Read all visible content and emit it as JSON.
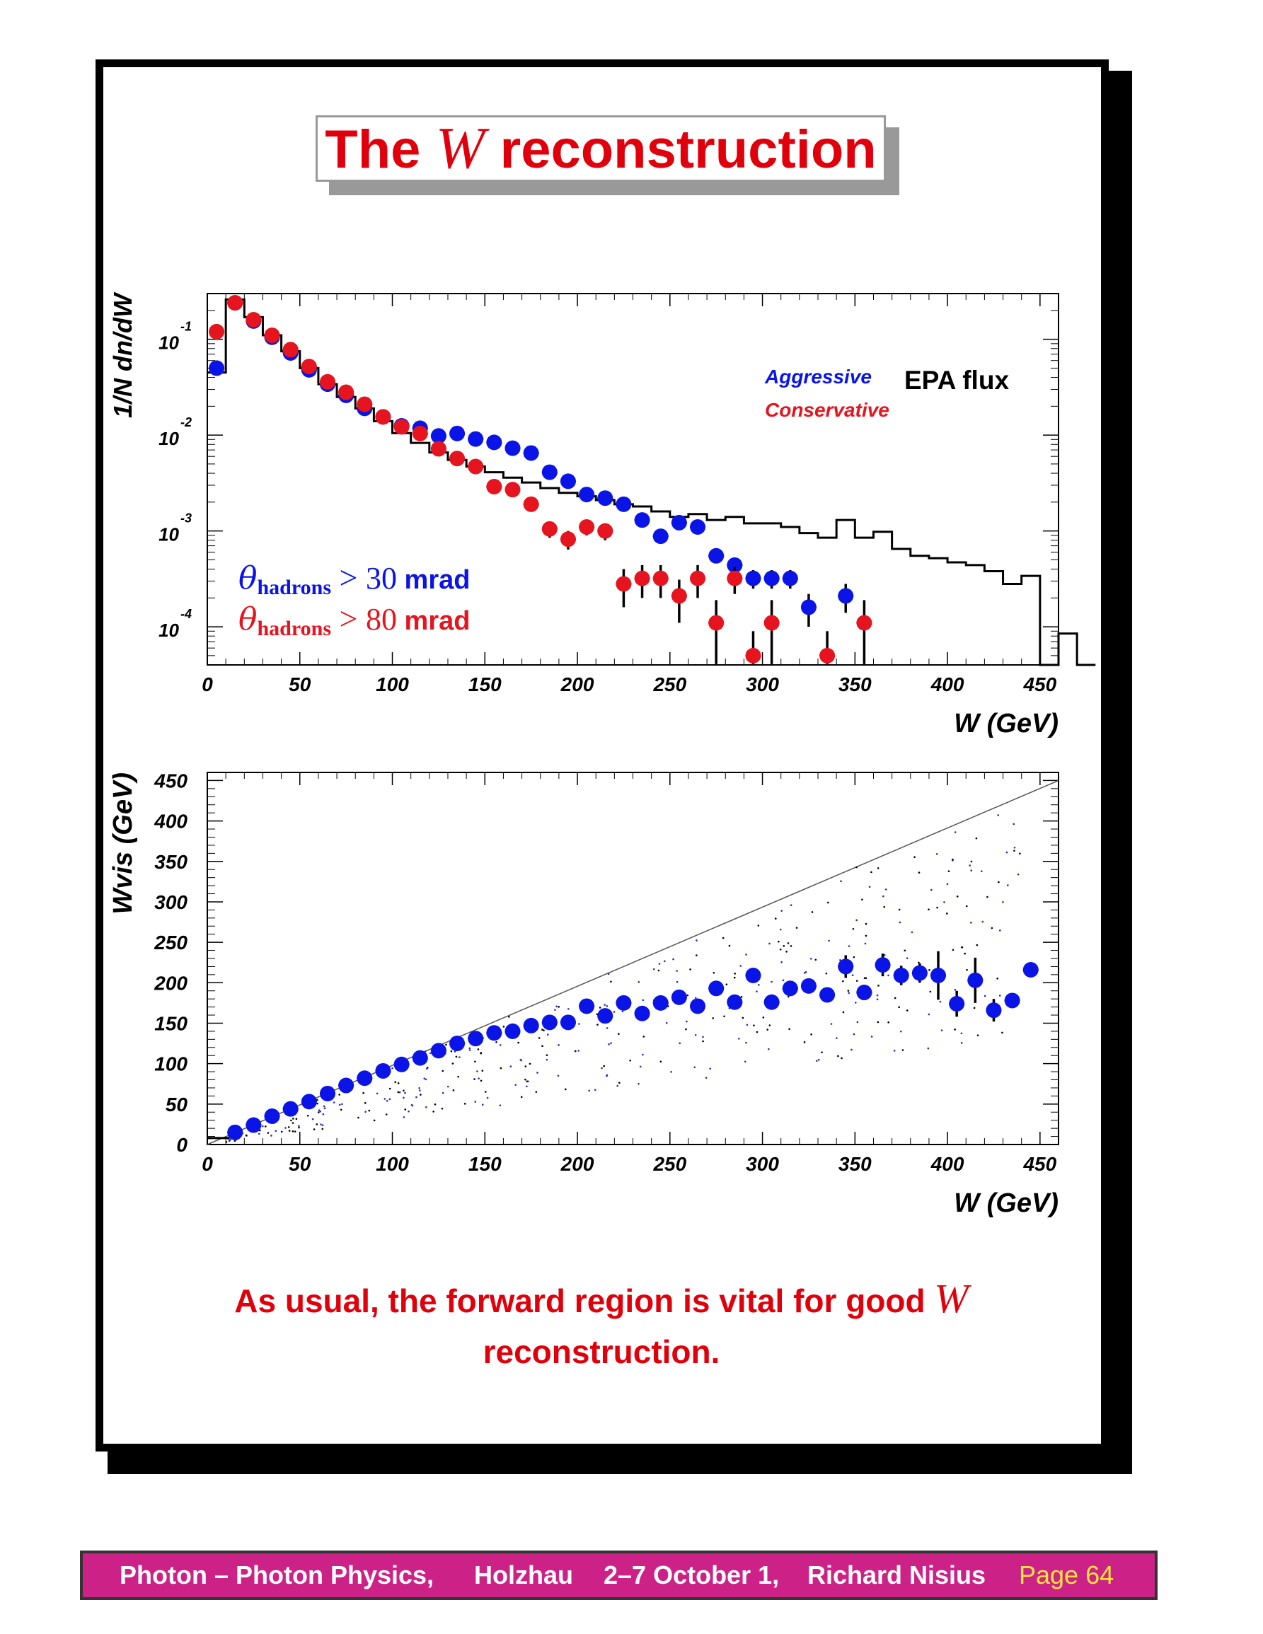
{
  "slide": {
    "title_pre": "The",
    "title_var": "W",
    "title_post": "reconstruction",
    "conclusion_line1": "As usual, the forward region is vital for good",
    "conclusion_var": "W",
    "conclusion_line2": "reconstruction."
  },
  "footer": {
    "talk": "Photon – Photon Physics,",
    "venue": "Holzhau",
    "dates": "2–7 October 1,",
    "author": "Richard Nisius",
    "page": "Page 64"
  },
  "colors": {
    "blue": "#0a14e6",
    "red": "#e5141e",
    "black": "#000000",
    "accent_red": "#e0000b",
    "footer_bg": "#cc2287",
    "page_label": "#ffe63a"
  },
  "chart_data": [
    {
      "type": "scatter",
      "log_y": true,
      "ylabel": "1/N dn/dW",
      "xlabel": "W (GeV)",
      "xlim": [
        0,
        460
      ],
      "ylim": [
        4e-05,
        0.3
      ],
      "x_ticks": [
        "0",
        "50",
        "100",
        "150",
        "200",
        "250",
        "300",
        "350",
        "400",
        "450"
      ],
      "y_ticks": [
        {
          "value": 0.1,
          "base": "10",
          "exp": "-1"
        },
        {
          "value": 0.01,
          "base": "10",
          "exp": "-2"
        },
        {
          "value": 0.001,
          "base": "10",
          "exp": "-3"
        },
        {
          "value": 0.0001,
          "base": "10",
          "exp": "-4"
        }
      ],
      "legend": [
        {
          "name": "Aggressive",
          "color": "#0a14e6"
        },
        {
          "name": "Conservative",
          "color": "#e5141e"
        },
        {
          "name": "EPA flux",
          "color": "#000000"
        }
      ],
      "annotations": [
        {
          "theta": "θ",
          "sub": "hadrons",
          "rel": ">",
          "value": "30",
          "unit": "mrad",
          "color": "#0a14e6"
        },
        {
          "theta": "θ",
          "sub": "hadrons",
          "rel": ">",
          "value": "80",
          "unit": "mrad",
          "color": "#e5141e"
        }
      ],
      "series": [
        {
          "name": "EPA flux",
          "style": "histogram",
          "bin_width": 10,
          "bin_edges_start": 0,
          "values": [
            0.045,
            0.26,
            0.17,
            0.11,
            0.075,
            0.05,
            0.034,
            0.025,
            0.019,
            0.014,
            0.0105,
            0.0083,
            0.0066,
            0.0055,
            0.0047,
            0.0041,
            0.0036,
            0.0032,
            0.0028,
            0.0025,
            0.0023,
            0.0021,
            0.0019,
            0.0018,
            0.0016,
            0.0014,
            0.0015,
            0.0013,
            0.0014,
            0.0012,
            0.0012,
            0.0011,
            0.00095,
            0.00085,
            0.0013,
            0.00085,
            0.00098,
            0.00065,
            0.00055,
            0.00052,
            0.00047,
            0.00044,
            0.00038,
            0.00028,
            0.00034,
            4e-05,
            8.5e-05,
            3e-05
          ]
        },
        {
          "name": "Aggressive",
          "style": "markers",
          "x": [
            5,
            15,
            25,
            35,
            45,
            55,
            65,
            75,
            85,
            95,
            105,
            115,
            125,
            135,
            145,
            155,
            165,
            175,
            185,
            195,
            205,
            215,
            225,
            235,
            245,
            255,
            265,
            275,
            285,
            295,
            305,
            315,
            325,
            345
          ],
          "y": [
            0.05,
            0.24,
            0.155,
            0.105,
            0.072,
            0.048,
            0.034,
            0.026,
            0.019,
            0.0155,
            0.0125,
            0.0118,
            0.0098,
            0.0104,
            0.0091,
            0.0084,
            0.0073,
            0.0065,
            0.0041,
            0.0033,
            0.0024,
            0.0022,
            0.0019,
            0.0013,
            0.00088,
            0.00122,
            0.0011,
            0.00055,
            0.00044,
            0.00032,
            0.00032,
            0.00032,
            0.00016,
            0.00021
          ],
          "yerr": [
            0.005,
            0.015,
            0.008,
            0.005,
            0.003,
            0.002,
            0.0015,
            0.001,
            0.0008,
            0.0007,
            0.0006,
            0.0005,
            0.0005,
            0.0005,
            0.0004,
            0.0004,
            0.0004,
            0.0004,
            0.0003,
            0.0002,
            0.0002,
            0.0002,
            0.00015,
            0.00012,
            0.0001,
            0.0001,
            0.0001,
            8e-05,
            8e-05,
            7e-05,
            7e-05,
            7e-05,
            6e-05,
            7e-05
          ]
        },
        {
          "name": "Conservative",
          "style": "markers",
          "x": [
            5,
            15,
            25,
            35,
            45,
            55,
            65,
            75,
            85,
            95,
            105,
            115,
            125,
            135,
            145,
            155,
            165,
            175,
            185,
            195,
            205,
            215,
            225,
            235,
            245,
            255,
            265,
            275,
            285,
            295,
            305,
            335,
            355
          ],
          "y": [
            0.12,
            0.24,
            0.16,
            0.11,
            0.078,
            0.052,
            0.036,
            0.028,
            0.021,
            0.0155,
            0.0122,
            0.0104,
            0.0072,
            0.0057,
            0.0047,
            0.0029,
            0.0027,
            0.0019,
            0.00105,
            0.00082,
            0.0011,
            0.001,
            0.00028,
            0.00032,
            0.00032,
            0.00021,
            0.00032,
            0.00011,
            0.00032,
            5e-05,
            0.00011,
            5e-05,
            0.00011
          ],
          "yerr": [
            0.008,
            0.015,
            0.008,
            0.005,
            0.003,
            0.002,
            0.0015,
            0.001,
            0.0008,
            0.0007,
            0.0006,
            0.0005,
            0.0004,
            0.0003,
            0.0003,
            0.0003,
            0.0003,
            0.0002,
            0.0002,
            0.00018,
            0.0002,
            0.0002,
            0.00012,
            0.00012,
            0.00012,
            0.0001,
            0.00012,
            8e-05,
            0.0001,
            4e-05,
            8e-05,
            4e-05,
            8e-05
          ]
        }
      ]
    },
    {
      "type": "scatter",
      "ylabel": "Wvis (GeV)",
      "xlabel": "W (GeV)",
      "xlim": [
        0,
        460
      ],
      "ylim": [
        0,
        460
      ],
      "x_ticks": [
        "0",
        "50",
        "100",
        "150",
        "200",
        "250",
        "300",
        "350",
        "400",
        "450"
      ],
      "y_ticks": [
        "0",
        "50",
        "100",
        "150",
        "200",
        "250",
        "300",
        "350",
        "400",
        "450"
      ],
      "diagonal": {
        "from": [
          0,
          0
        ],
        "to": [
          460,
          450
        ]
      },
      "scatter_cloud": {
        "color": "#000000",
        "description_only": false
      },
      "series": [
        {
          "name": "Aggressive",
          "style": "markers",
          "x": [
            15,
            25,
            35,
            45,
            55,
            65,
            75,
            85,
            95,
            105,
            115,
            125,
            135,
            145,
            155,
            165,
            175,
            185,
            195,
            205,
            215,
            225,
            235,
            245,
            255,
            265,
            275,
            285,
            295,
            305,
            315,
            325,
            335,
            345,
            355,
            365,
            375,
            385,
            395,
            405,
            415,
            425,
            435,
            445
          ],
          "y": [
            15,
            24,
            35,
            44,
            53,
            63,
            73,
            82,
            91,
            99,
            107,
            116,
            125,
            131,
            138,
            140,
            147,
            151,
            151,
            171,
            159,
            175,
            162,
            175,
            182,
            171,
            193,
            176,
            209,
            176,
            193,
            196,
            185,
            220,
            188,
            222,
            209,
            212,
            209,
            174,
            203,
            166,
            178,
            216
          ],
          "yerr": [
            2,
            2,
            2,
            2,
            2,
            2,
            2,
            2,
            2,
            3,
            3,
            3,
            3,
            3,
            3,
            3,
            3,
            4,
            4,
            4,
            4,
            4,
            5,
            5,
            5,
            5,
            6,
            6,
            6,
            7,
            8,
            8,
            8,
            14,
            9,
            14,
            12,
            12,
            30,
            16,
            28,
            14,
            5,
            5
          ]
        }
      ]
    }
  ]
}
